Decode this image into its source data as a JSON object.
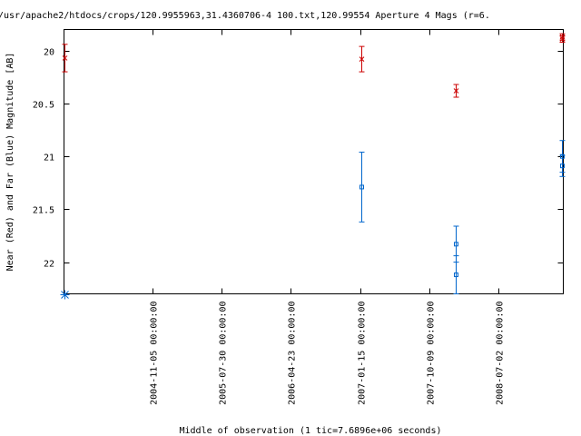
{
  "chart_data": {
    "type": "scatter",
    "title": "/usr/apache2/htdocs/crops/120.9955963,31.4360706-4 100.txt,120.99554   Aperture 4 Mags (r=6.",
    "xlabel": "Middle of observation (1 tic=7.6896e+06 seconds)",
    "ylabel": "Near (Red) and Far (Blue) Magnitude [AB]",
    "y_inverted": true,
    "ylim": [
      22.3,
      19.8
    ],
    "xlim": [
      "2003-12-01 00:00:00",
      "2009-03-08 00:00:00"
    ],
    "yticks": [
      "20",
      "20.5",
      "21",
      "21.5",
      "22"
    ],
    "yticks_values": [
      20,
      20.5,
      21,
      21.5,
      22
    ],
    "xticks": [
      "2004-11-05 00:00:00",
      "2005-07-30 00:00:00",
      "2006-04-23 00:00:00",
      "2007-01-15 00:00:00",
      "2007-10-09 00:00:00",
      "2008-07-02 00:00:00"
    ],
    "series": [
      {
        "color": "#cc0000",
        "marker": "x",
        "points": [
          {
            "x": "2003-12-02",
            "y": 20.07,
            "yerr": 0.13
          },
          {
            "x": "2007-01-18",
            "y": 20.08,
            "yerr": 0.12
          },
          {
            "x": "2008-01-20",
            "y": 20.38,
            "yerr": 0.06
          },
          {
            "x": "2009-03-02",
            "y": 19.87,
            "yerr": 0.03
          },
          {
            "x": "2009-03-04",
            "y": 19.89,
            "yerr": 0.03
          }
        ]
      },
      {
        "color": "#0066cc",
        "marker": "square",
        "points": [
          {
            "x": "2007-01-18",
            "y": 21.29,
            "yerr": 0.33
          },
          {
            "x": "2008-01-20",
            "y": 21.83,
            "yerr": 0.17
          },
          {
            "x": "2008-01-20",
            "y": 22.12,
            "yerr": 0.18
          },
          {
            "x": "2009-03-02",
            "y": 21.0,
            "yerr": 0.15
          },
          {
            "x": "2009-03-04",
            "y": 21.09,
            "yerr": 0.1
          }
        ]
      }
    ],
    "markers": [
      {
        "x": "2003-12-01",
        "y": 22.3,
        "color": "#0066cc",
        "marker": "asterisk"
      }
    ]
  }
}
